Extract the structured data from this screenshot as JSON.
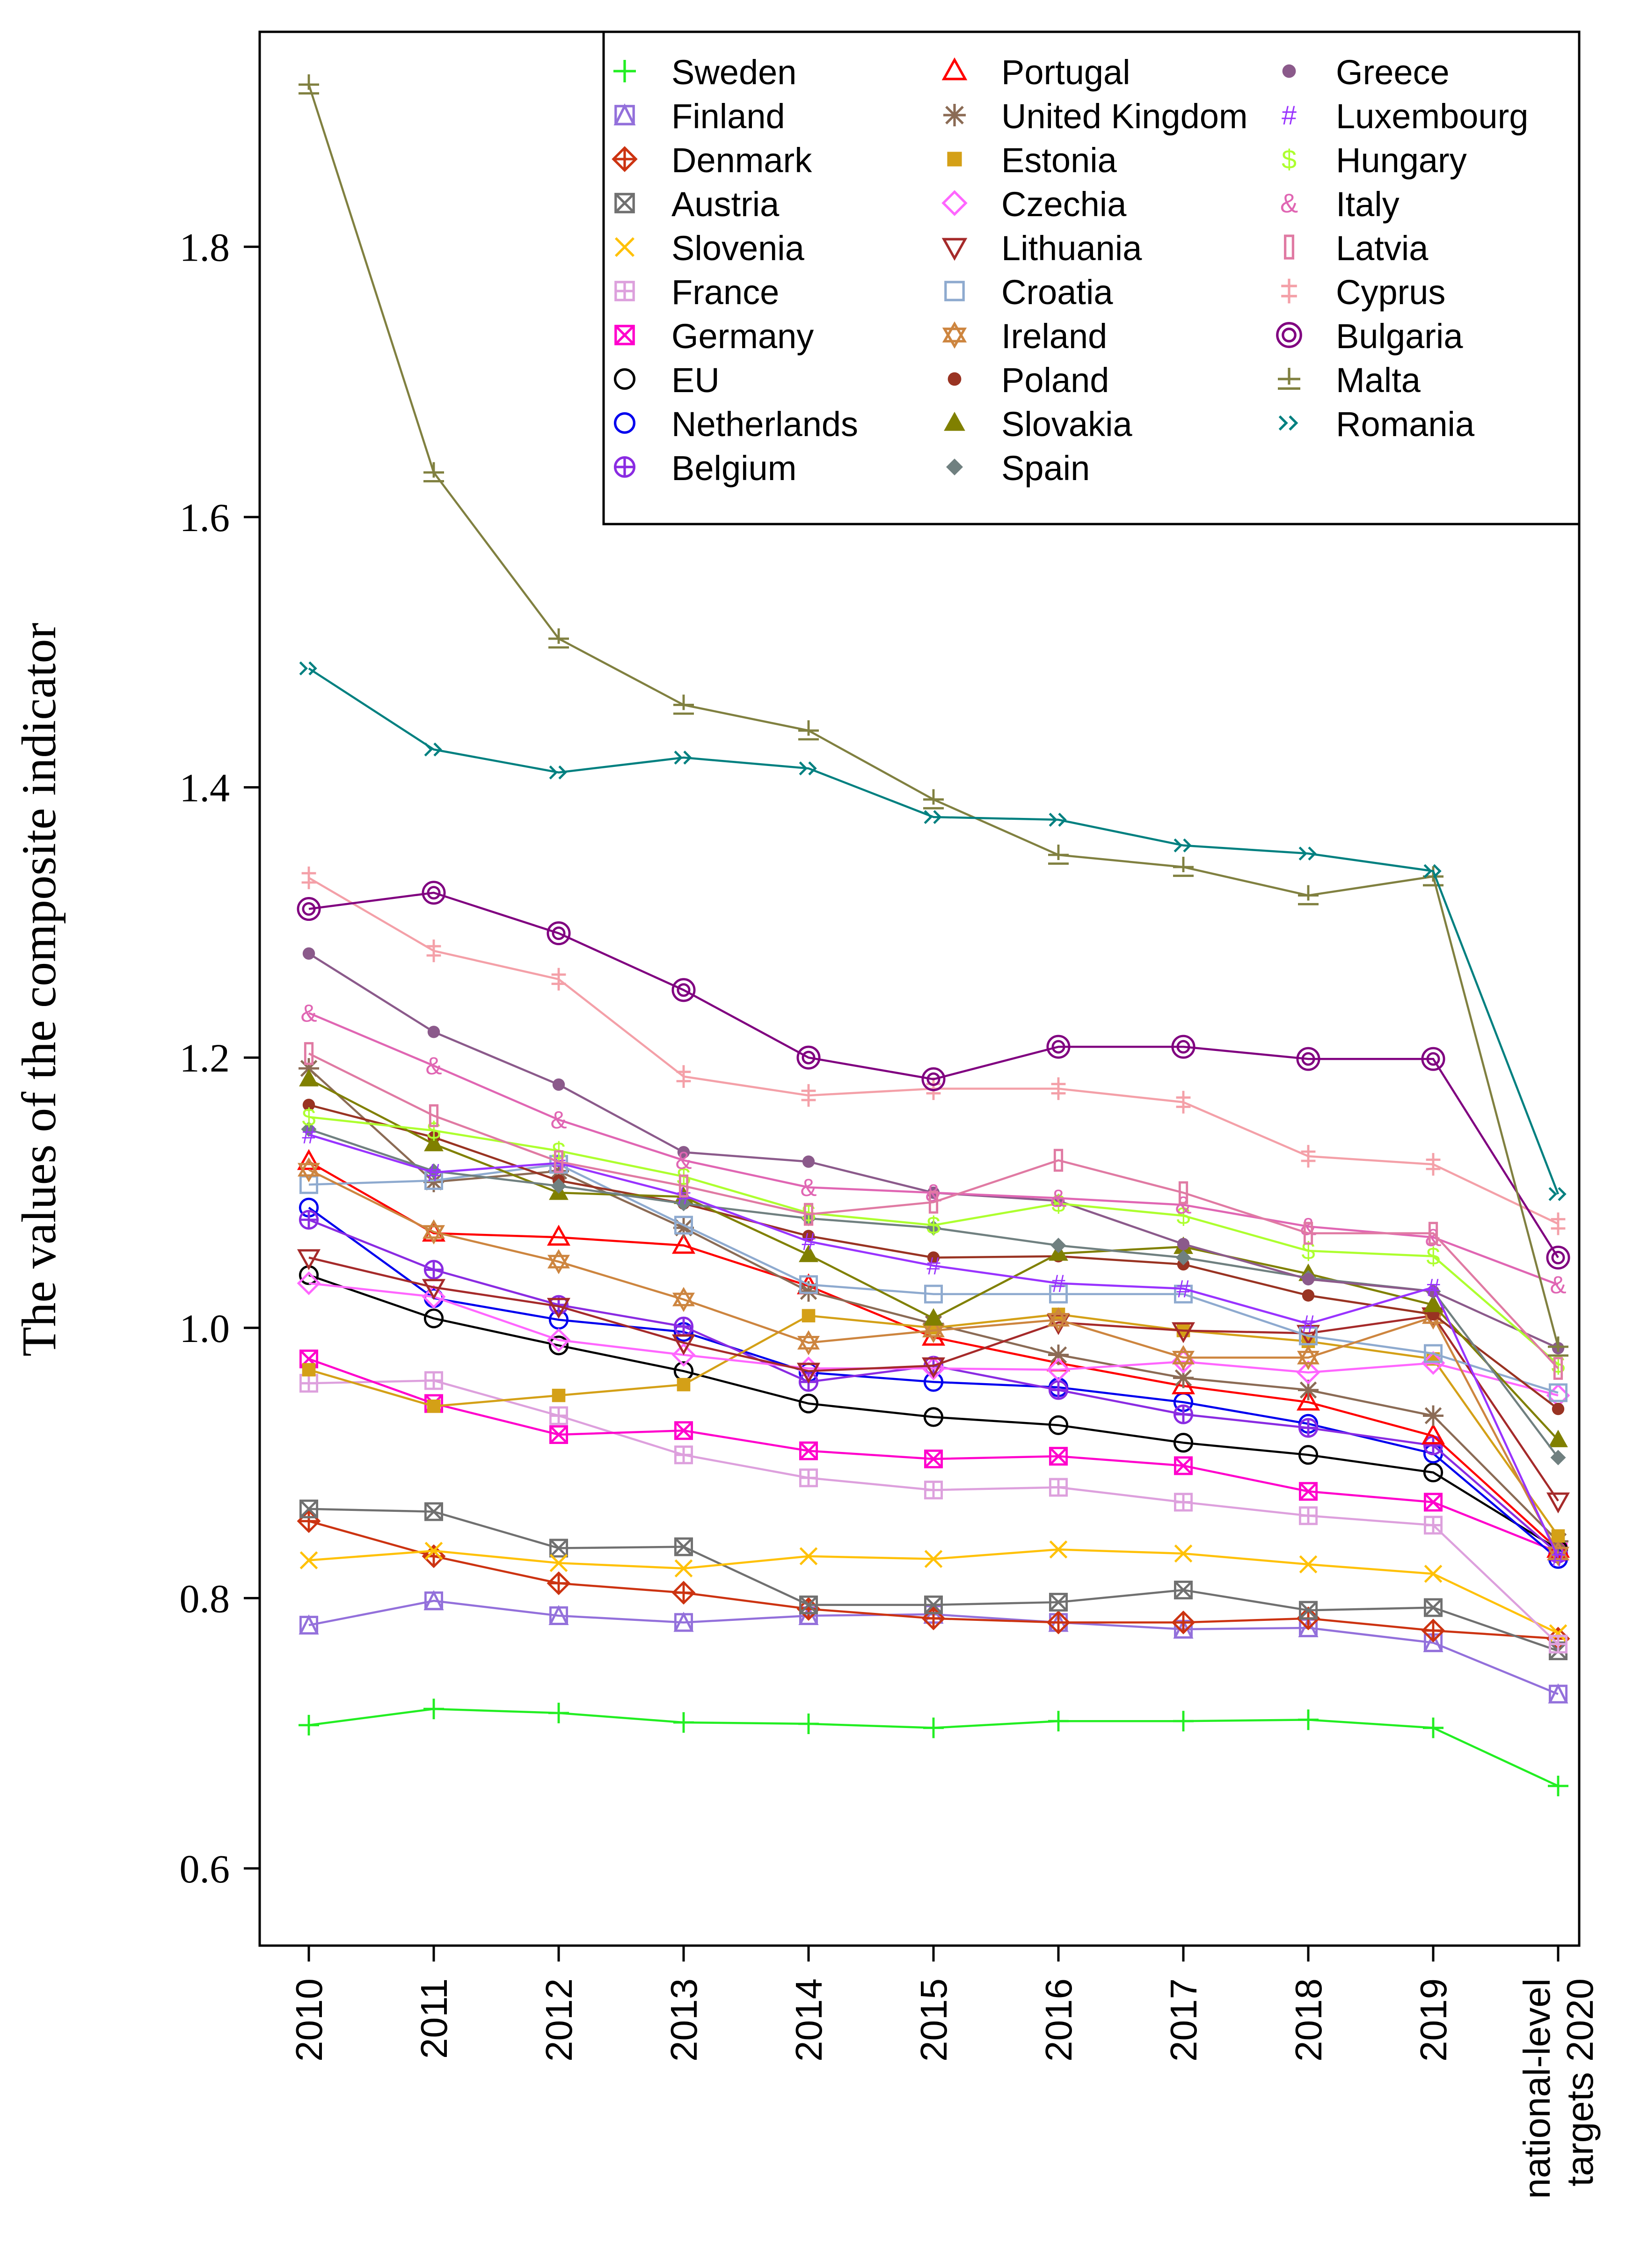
{
  "chart_data": {
    "type": "line",
    "title": "",
    "xlabel": "",
    "ylabel": "The values of the composite indicator",
    "categories": [
      "2010",
      "2011",
      "2012",
      "2013",
      "2014",
      "2015",
      "2016",
      "2017",
      "2018",
      "2019",
      "national-level targets 2020"
    ],
    "category_lines": [
      [
        "2010"
      ],
      [
        "2011"
      ],
      [
        "2012"
      ],
      [
        "2013"
      ],
      [
        "2014"
      ],
      [
        "2015"
      ],
      [
        "2016"
      ],
      [
        "2017"
      ],
      [
        "2018"
      ],
      [
        "2019"
      ],
      [
        "national-level",
        "targets 2020"
      ]
    ],
    "ylim": [
      0.56,
      1.94
    ],
    "yticks": [
      "0.6",
      "0.8",
      "1.0",
      "1.2",
      "1.4",
      "1.6",
      "1.8"
    ],
    "grid": false,
    "legend_position": "top-right",
    "series": [
      {
        "name": "Sweden",
        "color": "#22ee22",
        "marker": "plus",
        "values": [
          0.706,
          0.718,
          0.715,
          0.708,
          0.707,
          0.704,
          0.709,
          0.709,
          0.71,
          0.704,
          0.661
        ]
      },
      {
        "name": "Finland",
        "color": "#9370db",
        "marker": "square-triangle",
        "values": [
          0.78,
          0.798,
          0.787,
          0.782,
          0.787,
          0.788,
          0.782,
          0.777,
          0.778,
          0.767,
          0.729
        ]
      },
      {
        "name": "Denmark",
        "color": "#cc3311",
        "marker": "diamond-plus",
        "values": [
          0.857,
          0.831,
          0.811,
          0.804,
          0.792,
          0.785,
          0.782,
          0.782,
          0.785,
          0.776,
          0.77
        ]
      },
      {
        "name": "Austria",
        "color": "#707070",
        "marker": "square-x",
        "values": [
          0.866,
          0.864,
          0.837,
          0.838,
          0.795,
          0.795,
          0.797,
          0.806,
          0.791,
          0.793,
          0.761
        ]
      },
      {
        "name": "Slovenia",
        "color": "#ffc107",
        "marker": "x",
        "values": [
          0.828,
          0.835,
          0.826,
          0.822,
          0.831,
          0.829,
          0.836,
          0.833,
          0.825,
          0.818,
          0.774
        ]
      },
      {
        "name": "France",
        "color": "#dda0dd",
        "marker": "square-plus",
        "values": [
          0.959,
          0.961,
          0.935,
          0.906,
          0.889,
          0.88,
          0.882,
          0.871,
          0.861,
          0.854,
          0.766
        ]
      },
      {
        "name": "Germany",
        "color": "#ff00cc",
        "marker": "square-x",
        "values": [
          0.977,
          0.944,
          0.921,
          0.924,
          0.909,
          0.903,
          0.905,
          0.898,
          0.879,
          0.871,
          0.834
        ]
      },
      {
        "name": "EU",
        "color": "#000000",
        "marker": "circle",
        "values": [
          1.039,
          1.007,
          0.987,
          0.968,
          0.944,
          0.934,
          0.928,
          0.915,
          0.906,
          0.893,
          0.836
        ]
      },
      {
        "name": "Netherlands",
        "color": "#0000ee",
        "marker": "circle",
        "values": [
          1.089,
          1.022,
          1.006,
          0.997,
          0.967,
          0.96,
          0.956,
          0.945,
          0.929,
          0.907,
          0.829
        ]
      },
      {
        "name": "Belgium",
        "color": "#8a2be2",
        "marker": "circle-plus",
        "values": [
          1.08,
          1.043,
          1.017,
          1.001,
          0.96,
          0.972,
          0.954,
          0.936,
          0.926,
          0.913,
          0.833
        ]
      },
      {
        "name": "Portugal",
        "color": "#ff0000",
        "marker": "triangle",
        "values": [
          1.123,
          1.07,
          1.067,
          1.061,
          1.031,
          0.993,
          0.974,
          0.957,
          0.945,
          0.92,
          0.836
        ]
      },
      {
        "name": "United Kingdom",
        "color": "#8b6b55",
        "marker": "asterisk",
        "values": [
          1.192,
          1.108,
          1.116,
          1.074,
          1.027,
          1.003,
          0.98,
          0.963,
          0.954,
          0.935,
          0.842
        ]
      },
      {
        "name": "Estonia",
        "color": "#d4a017",
        "marker": "square-filled",
        "values": [
          0.969,
          0.942,
          0.95,
          0.958,
          1.009,
          1.0,
          1.01,
          0.998,
          0.99,
          0.977,
          0.846
        ]
      },
      {
        "name": "Czechia",
        "color": "#ff66ff",
        "marker": "diamond",
        "values": [
          1.033,
          1.023,
          0.991,
          0.98,
          0.97,
          0.97,
          0.969,
          0.975,
          0.967,
          0.974,
          0.95
        ]
      },
      {
        "name": "Lithuania",
        "color": "#a52a2a",
        "marker": "triangle-down",
        "values": [
          1.052,
          1.03,
          1.016,
          0.989,
          0.968,
          0.972,
          1.004,
          0.998,
          0.996,
          1.009,
          0.872
        ]
      },
      {
        "name": "Croatia",
        "color": "#8eaacf",
        "marker": "square",
        "values": [
          1.106,
          1.109,
          1.121,
          1.076,
          1.032,
          1.025,
          1.025,
          1.025,
          0.994,
          0.981,
          0.952
        ]
      },
      {
        "name": "Ireland",
        "color": "#cd853f",
        "marker": "star-of-david",
        "values": [
          1.117,
          1.071,
          1.049,
          1.021,
          0.989,
          0.998,
          1.006,
          0.978,
          0.978,
          1.008,
          0.833
        ]
      },
      {
        "name": "Poland",
        "color": "#993322",
        "marker": "circle-filled",
        "values": [
          1.165,
          1.141,
          1.109,
          1.092,
          1.068,
          1.052,
          1.053,
          1.047,
          1.024,
          1.01,
          0.94
        ]
      },
      {
        "name": "Slovakia",
        "color": "#808000",
        "marker": "triangle-filled",
        "values": [
          1.184,
          1.136,
          1.1,
          1.097,
          1.054,
          1.007,
          1.055,
          1.06,
          1.04,
          1.017,
          0.917
        ]
      },
      {
        "name": "Spain",
        "color": "#708080",
        "marker": "diamond-filled",
        "values": [
          1.147,
          1.116,
          1.105,
          1.092,
          1.081,
          1.074,
          1.061,
          1.052,
          1.037,
          1.027,
          0.904
        ]
      },
      {
        "name": "Greece",
        "color": "#8b5a8b",
        "marker": "circle-filled",
        "values": [
          1.277,
          1.219,
          1.18,
          1.13,
          1.123,
          1.1,
          1.094,
          1.062,
          1.036,
          1.027,
          0.985
        ]
      },
      {
        "name": "Luxembourg",
        "color": "#9933ff",
        "marker": "hash",
        "values": [
          1.143,
          1.115,
          1.122,
          1.098,
          1.064,
          1.046,
          1.033,
          1.029,
          1.003,
          1.03,
          0.83
        ]
      },
      {
        "name": "Hungary",
        "color": "#adff2f",
        "marker": "dollar",
        "values": [
          1.156,
          1.146,
          1.131,
          1.112,
          1.085,
          1.076,
          1.092,
          1.083,
          1.057,
          1.053,
          0.973
        ]
      },
      {
        "name": "Italy",
        "color": "#e066b3",
        "marker": "ampersand",
        "values": [
          1.233,
          1.194,
          1.154,
          1.124,
          1.104,
          1.1,
          1.096,
          1.091,
          1.075,
          1.067,
          1.032
        ]
      },
      {
        "name": "Latvia",
        "color": "#e07aa3",
        "marker": "rect-tall",
        "values": [
          1.203,
          1.157,
          1.123,
          1.105,
          1.084,
          1.093,
          1.124,
          1.1,
          1.07,
          1.07,
          0.97
        ]
      },
      {
        "name": "Cyprus",
        "color": "#f4a0a8",
        "marker": "double-dagger",
        "values": [
          1.333,
          1.279,
          1.258,
          1.186,
          1.172,
          1.177,
          1.177,
          1.167,
          1.127,
          1.121,
          1.077
        ]
      },
      {
        "name": "Bulgaria",
        "color": "#800080",
        "marker": "copyright",
        "values": [
          1.31,
          1.322,
          1.292,
          1.25,
          1.2,
          1.184,
          1.208,
          1.208,
          1.199,
          1.199,
          1.052
        ]
      },
      {
        "name": "Malta",
        "color": "#808040",
        "marker": "plus-minus",
        "values": [
          1.92,
          1.633,
          1.51,
          1.461,
          1.442,
          1.391,
          1.35,
          1.341,
          1.32,
          1.334,
          0.986
        ]
      },
      {
        "name": "Romania",
        "color": "#008080",
        "marker": "double-chevron",
        "values": [
          1.488,
          1.428,
          1.411,
          1.422,
          1.414,
          1.378,
          1.376,
          1.357,
          1.351,
          1.338,
          1.099
        ]
      }
    ]
  }
}
